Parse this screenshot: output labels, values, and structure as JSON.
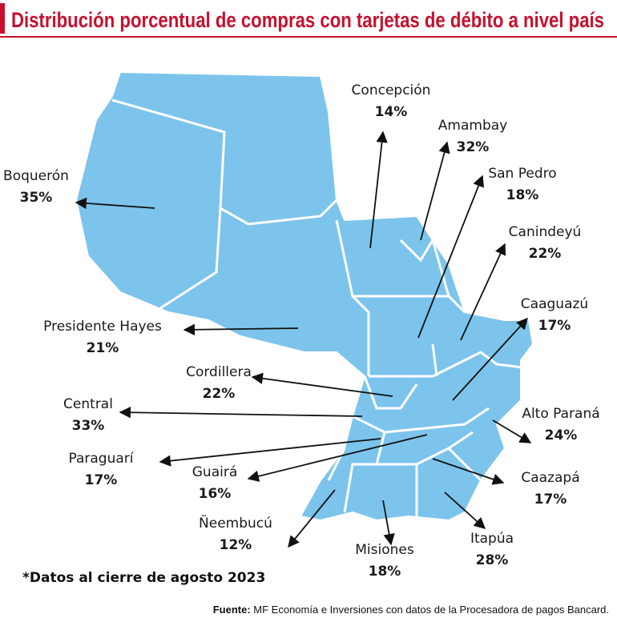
{
  "title": "Distribución porcentual de compras con tarjetas de débito a nivel país",
  "regions": [
    {
      "name": "Concepción",
      "percent": "14%"
    },
    {
      "name": "Amambay",
      "percent": "32%"
    },
    {
      "name": "San Pedro",
      "percent": "18%"
    },
    {
      "name": "Canindeyú",
      "percent": "22%"
    },
    {
      "name": "Caaguazú",
      "percent": "17%"
    },
    {
      "name": "Alto Paraná",
      "percent": "24%"
    },
    {
      "name": "Caazapá",
      "percent": "17%"
    },
    {
      "name": "Itapúa",
      "percent": "28%"
    },
    {
      "name": "Misiones",
      "percent": "18%"
    },
    {
      "name": "Ñeembucú",
      "percent": "12%"
    },
    {
      "name": "Guairá",
      "percent": "16%"
    },
    {
      "name": "Paraguarí",
      "percent": "17%"
    },
    {
      "name": "Central",
      "percent": "33%"
    },
    {
      "name": "Cordillera",
      "percent": "22%"
    },
    {
      "name": "Presidente Hayes",
      "percent": "21%"
    },
    {
      "name": "Boquerón",
      "percent": "35%"
    }
  ],
  "note": "*Datos al cierre de agosto 2023",
  "source": {
    "label": "Fuente:",
    "text": "MF Economía e Inversiones con datos de la Procesadora de pagos Bancard."
  }
}
